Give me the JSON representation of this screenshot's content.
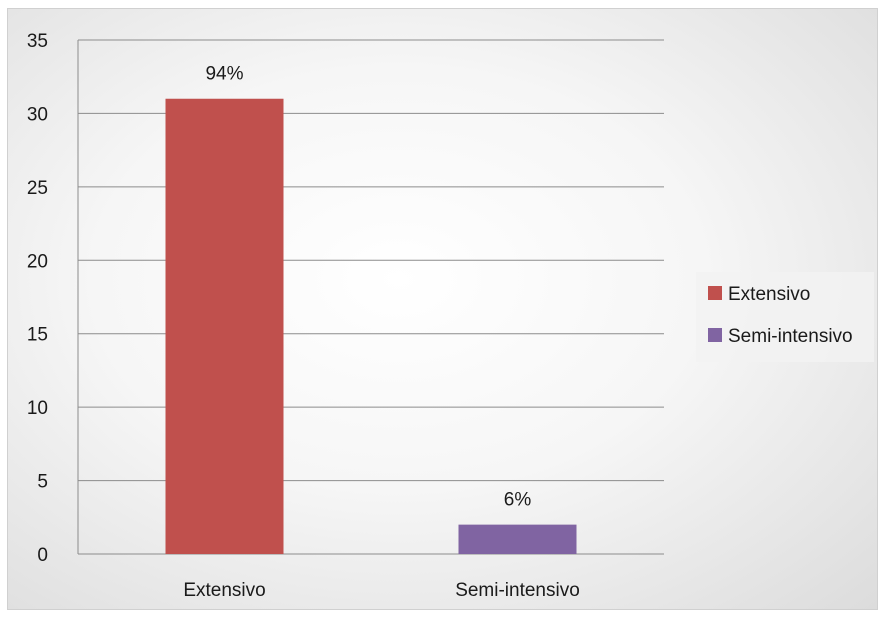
{
  "chart_data": {
    "type": "bar",
    "categories": [
      "Extensivo",
      "Semi-intensivo"
    ],
    "values": [
      31,
      2
    ],
    "data_labels": [
      "94%",
      "6%"
    ],
    "colors": [
      "#c0504d",
      "#8064a2"
    ],
    "yticks": [
      0,
      5,
      10,
      15,
      20,
      25,
      30,
      35
    ],
    "ylim": [
      0,
      35
    ],
    "grid": true,
    "legend": {
      "placement": "right",
      "entries": [
        {
          "name": "Extensivo",
          "color": "#c0504d"
        },
        {
          "name": "Semi-intensivo",
          "color": "#8064a2"
        }
      ]
    },
    "title": "",
    "xlabel": "",
    "ylabel": ""
  }
}
